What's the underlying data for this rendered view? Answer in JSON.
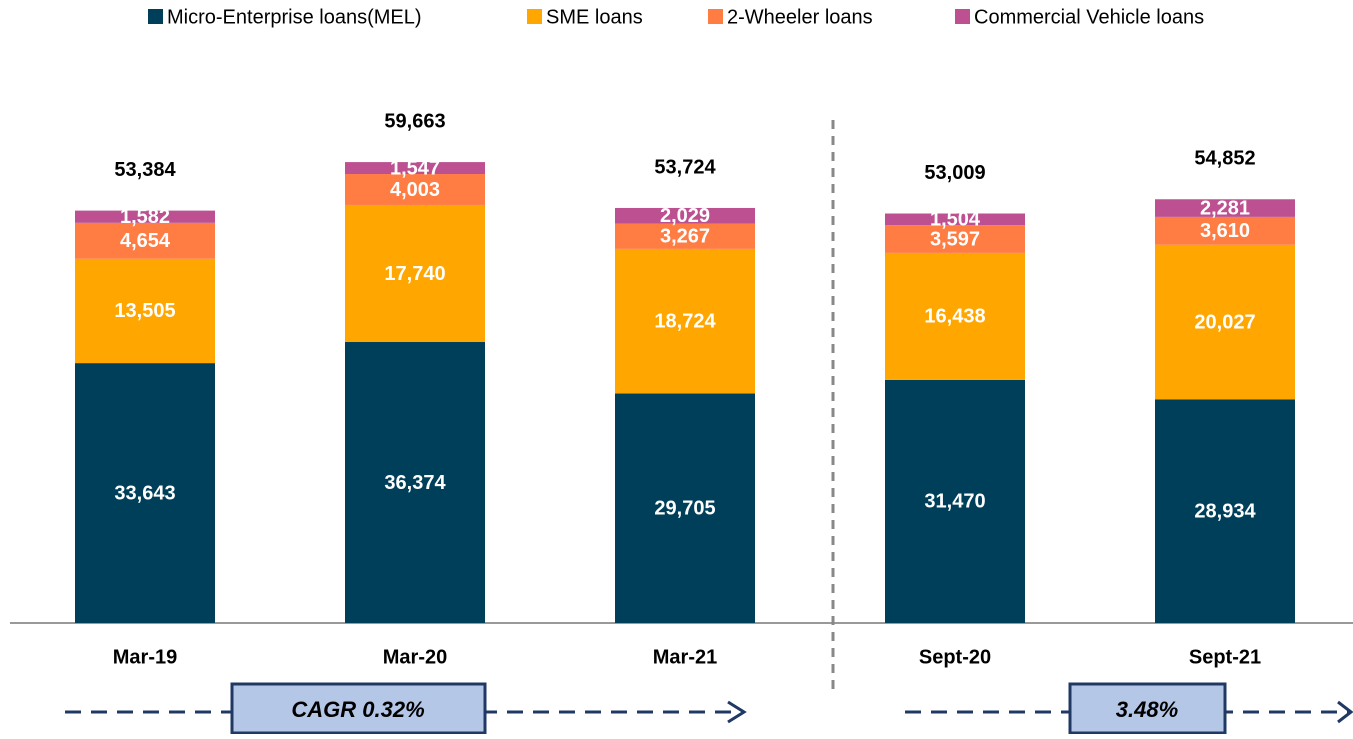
{
  "chart_data": {
    "type": "stacked_bar",
    "categories": [
      "Mar-19",
      "Mar-20",
      "Mar-21",
      "Sept-20",
      "Sept-21"
    ],
    "series": [
      {
        "name": "Micro-Enterprise loans(MEL)",
        "color": "#003f5a",
        "values": [
          33643,
          36374,
          29705,
          31470,
          28934
        ],
        "value_labels": [
          "33,643",
          "36,374",
          "29,705",
          "31,470",
          "28,934"
        ]
      },
      {
        "name": "SME loans",
        "color": "#ffa600",
        "values": [
          13505,
          17740,
          18724,
          16438,
          20027
        ],
        "value_labels": [
          "13,505",
          "17,740",
          "18,724",
          "16,438",
          "20,027"
        ]
      },
      {
        "name": "2-Wheeler loans",
        "color": "#ff7c43",
        "values": [
          4654,
          4003,
          3267,
          3597,
          3610
        ],
        "value_labels": [
          "4,654",
          "4,003",
          "3,267",
          "3,597",
          "3,610"
        ]
      },
      {
        "name": "Commercial Vehicle loans",
        "color": "#bc5090",
        "values": [
          1582,
          1547,
          2029,
          1504,
          2281
        ],
        "value_labels": [
          "1,582",
          "1,547",
          "2,029",
          "1,504",
          "2,281"
        ]
      }
    ],
    "totals": [
      53384,
      59663,
      53724,
      53009,
      54852
    ],
    "total_labels": [
      "53,384",
      "59,663",
      "53,724",
      "53,009",
      "54,852"
    ],
    "ylim": [
      0,
      80000
    ],
    "legend": "top",
    "annotations": [
      "CAGR 0.32%",
      "3.48%"
    ]
  }
}
